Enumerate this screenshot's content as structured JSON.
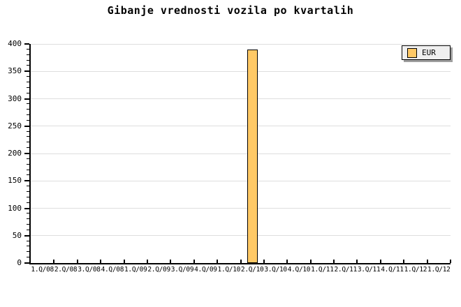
{
  "chart_data": {
    "type": "bar",
    "title": "Gibanje vrednosti vozila po kvartalih",
    "categories": [
      "1.Q/08",
      "2.Q/08",
      "3.Q/08",
      "4.Q/08",
      "1.Q/09",
      "2.Q/09",
      "3.Q/09",
      "4.Q/09",
      "1.Q/10",
      "2.Q/10",
      "3.Q/10",
      "4.Q/10",
      "1.Q/11",
      "2.Q/11",
      "3.Q/11",
      "4.Q/11",
      "1.Q/12",
      "1.Q/12"
    ],
    "series": [
      {
        "name": "EUR",
        "values": [
          null,
          null,
          null,
          null,
          null,
          null,
          null,
          null,
          null,
          390,
          null,
          null,
          null,
          null,
          null,
          null,
          null,
          null
        ]
      }
    ],
    "ylim": [
      0,
      400
    ],
    "yticks": [
      0,
      50,
      100,
      150,
      200,
      250,
      300,
      350,
      400
    ],
    "ytick_minor_step": 10,
    "grid": "horizontal-major",
    "legend": {
      "label": "EUR",
      "position": "top-right"
    },
    "colors": {
      "bar_fill": "#FFC966",
      "bar_border": "#000000",
      "grid": "#DEDEDE",
      "axis": "#000000",
      "legend_bg": "#EFEFEF",
      "legend_shadow": "#9E9E9E",
      "background": "#FFFFFF"
    }
  }
}
